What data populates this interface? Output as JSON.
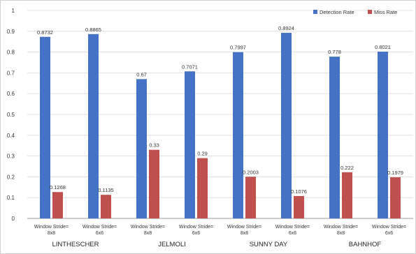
{
  "chart_data": {
    "type": "bar",
    "title": "",
    "xlabel": "",
    "ylabel": "",
    "ylim": [
      0,
      1
    ],
    "yticks": [
      0,
      0.1,
      0.2,
      0.3,
      0.4,
      0.5,
      0.6,
      0.7,
      0.8,
      0.9,
      1
    ],
    "grid": true,
    "legend_position": "top-right",
    "categories": [
      "Window Stride=\n8x8",
      "Window Stride=\n6x6",
      "Window Stride=\n8x8",
      "Window Stride=\n6x6",
      "Window Stride=\n8x8",
      "Window Stride=\n6x6",
      "Window Stride=\n8x8",
      "Window Stride=\n6x6"
    ],
    "groups": [
      "LINTHESCHER",
      "JELMOLI",
      "SUNNY DAY",
      "BAHNHOF"
    ],
    "series": [
      {
        "name": "Detection Rate",
        "color": "#4472c4",
        "values": [
          0.8732,
          0.8865,
          0.67,
          0.7071,
          0.7997,
          0.8924,
          0.778,
          0.8021
        ],
        "labels": [
          "0.8732",
          "0.8865",
          "0.67",
          "0.7071",
          "0.7997",
          "0.8924",
          "0.778",
          "0.8021"
        ]
      },
      {
        "name": "Miss Rate",
        "color": "#c0504d",
        "values": [
          0.1268,
          0.1135,
          0.33,
          0.29,
          0.2003,
          0.1076,
          0.222,
          0.1979
        ],
        "labels": [
          "0.1268",
          "0.1135",
          "0.33",
          "0.29",
          "0.2003",
          "0.1076",
          "0.222",
          "0.1979"
        ]
      }
    ]
  }
}
